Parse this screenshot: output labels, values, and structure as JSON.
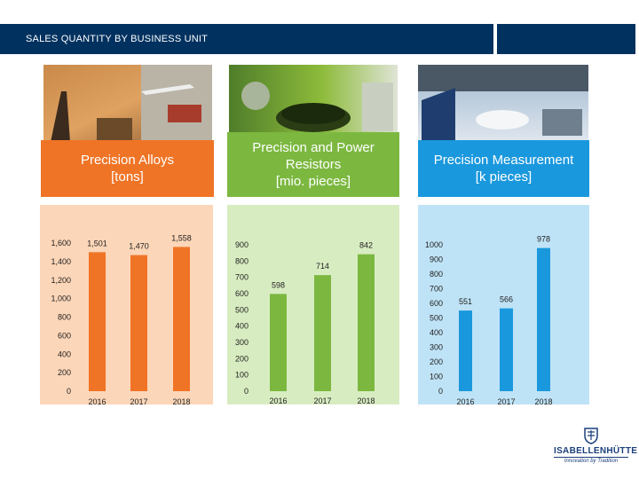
{
  "header": {
    "title": "SALES QUANTITY BY BUSINESS UNIT"
  },
  "colors": {
    "alloys": "#f07426",
    "resistors": "#7cb840",
    "measurement": "#1a98dd",
    "header": "#00315f"
  },
  "cards": {
    "alloys": "Precision Alloys\n[tons]",
    "resistors": "Precision and Power\nResistors\n[mio. pieces]",
    "measurement": "Precision Measurement\n[k pieces]"
  },
  "images": {
    "alloys": "photo-collage-alloys",
    "resistors": "photo-collage-resistors",
    "measurement": "photo-collage-measurement"
  },
  "chart_data": [
    {
      "type": "bar",
      "title": "Precision Alloys [tons]",
      "categories": [
        "2016",
        "2017",
        "2018"
      ],
      "values": [
        1501,
        1470,
        1558
      ],
      "value_labels": [
        "1,501",
        "1,470",
        "1,558"
      ],
      "yticks": [
        "0",
        "200",
        "400",
        "600",
        "800",
        "1,000",
        "1,200",
        "1,400",
        "1,600"
      ],
      "ylim": [
        0,
        1600
      ],
      "color": "#f07426"
    },
    {
      "type": "bar",
      "title": "Precision and Power Resistors [mio. pieces]",
      "categories": [
        "2016",
        "2017",
        "2018"
      ],
      "values": [
        598,
        714,
        842
      ],
      "value_labels": [
        "598",
        "714",
        "842"
      ],
      "yticks": [
        "0",
        "100",
        "200",
        "300",
        "400",
        "500",
        "600",
        "700",
        "800",
        "900"
      ],
      "ylim": [
        0,
        900
      ],
      "color": "#7cb840"
    },
    {
      "type": "bar",
      "title": "Precision Measurement [k pieces]",
      "categories": [
        "2016",
        "2017",
        "2018"
      ],
      "values": [
        551,
        566,
        978
      ],
      "value_labels": [
        "551",
        "566",
        "978"
      ],
      "yticks": [
        "0",
        "100",
        "200",
        "300",
        "400",
        "500",
        "600",
        "700",
        "800",
        "900",
        "1000"
      ],
      "ylim": [
        0,
        1000
      ],
      "color": "#1a98dd"
    }
  ],
  "logo": {
    "name": "ISABELLENHÜTTE",
    "tagline": "Innovation by Tradition"
  }
}
